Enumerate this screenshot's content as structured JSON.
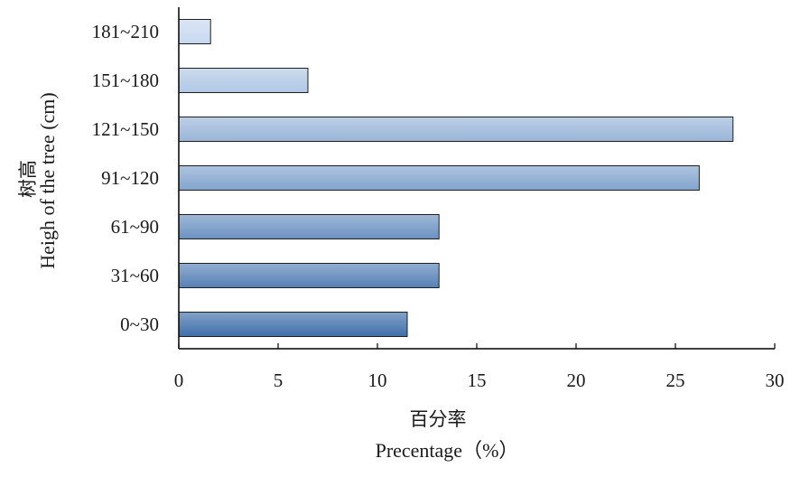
{
  "chart_data": {
    "type": "bar",
    "orientation": "horizontal",
    "categories": [
      "0~30",
      "31~60",
      "61~90",
      "91~120",
      "121~150",
      "151~180",
      "181~210"
    ],
    "values": [
      11.5,
      13.1,
      13.1,
      26.2,
      27.9,
      6.5,
      1.6
    ],
    "xlabel_cn": "百分率",
    "xlabel": "Precentage（%）",
    "ylabel_cn": "树高",
    "ylabel": "Heigh of the tree  (cm)",
    "xlim": [
      0,
      30
    ],
    "xticks": [
      0,
      5,
      10,
      15,
      20,
      25,
      30
    ],
    "grid": false,
    "legend": "none",
    "colors": {
      "bar_bottom": "#3f6faa",
      "bar_top": "#c7d8f0",
      "bar_stroke": "#1f1f1f",
      "axis": "#000000"
    }
  }
}
